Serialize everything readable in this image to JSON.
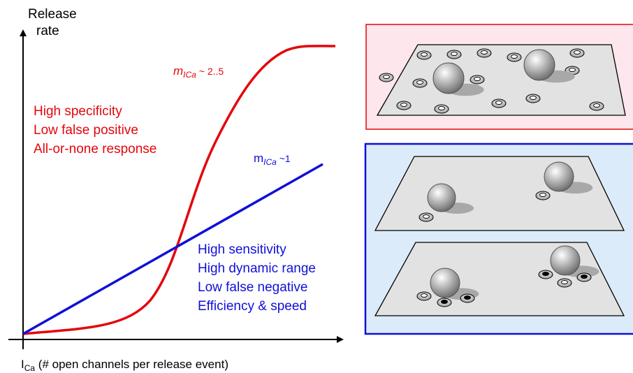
{
  "axes": {
    "y_label_lines": [
      "Release",
      "rate"
    ],
    "x_label": {
      "main": "I",
      "sub": "Ca",
      "rest": " (# open channels per release event)"
    }
  },
  "curves": {
    "red": {
      "label": {
        "main": "m",
        "sub": "ICa",
        "rest": " ~ 2..5"
      },
      "notes": [
        "High specificity",
        "Low false positive",
        "All-or-none response"
      ]
    },
    "blue": {
      "label": {
        "main": "m",
        "sub": "ICa",
        "rest": " ~1"
      },
      "notes": [
        "High sensitivity",
        "High dynamic range",
        "Low false negative",
        "Efficiency & speed"
      ]
    }
  }
}
